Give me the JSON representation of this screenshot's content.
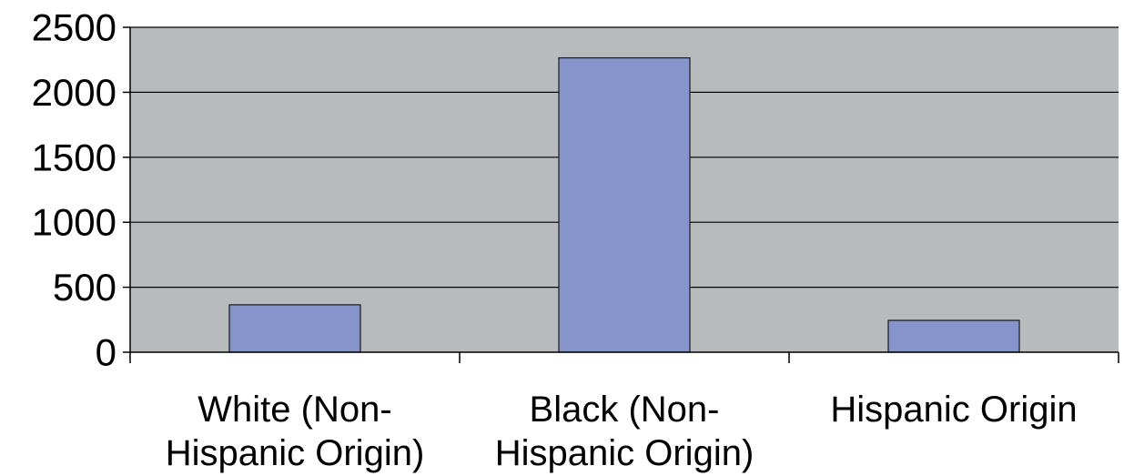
{
  "chart_data": {
    "type": "bar",
    "title": "",
    "xlabel": "",
    "ylabel": "",
    "categories": [
      [
        "White (Non-",
        "Hispanic Origin)"
      ],
      [
        "Black (Non-",
        "Hispanic Origin)"
      ],
      [
        "Hispanic Origin"
      ]
    ],
    "values": [
      365,
      2265,
      245
    ],
    "ylim": [
      0,
      2500
    ],
    "yticks": [
      0,
      500,
      1000,
      1500,
      2000,
      2500
    ],
    "grid": true,
    "legend": "none",
    "colors": {
      "plot_background": "#b8bbbd",
      "bar_fill": "#8594ca",
      "bar_stroke": "#1a1a1a",
      "gridline": "#000000"
    }
  }
}
